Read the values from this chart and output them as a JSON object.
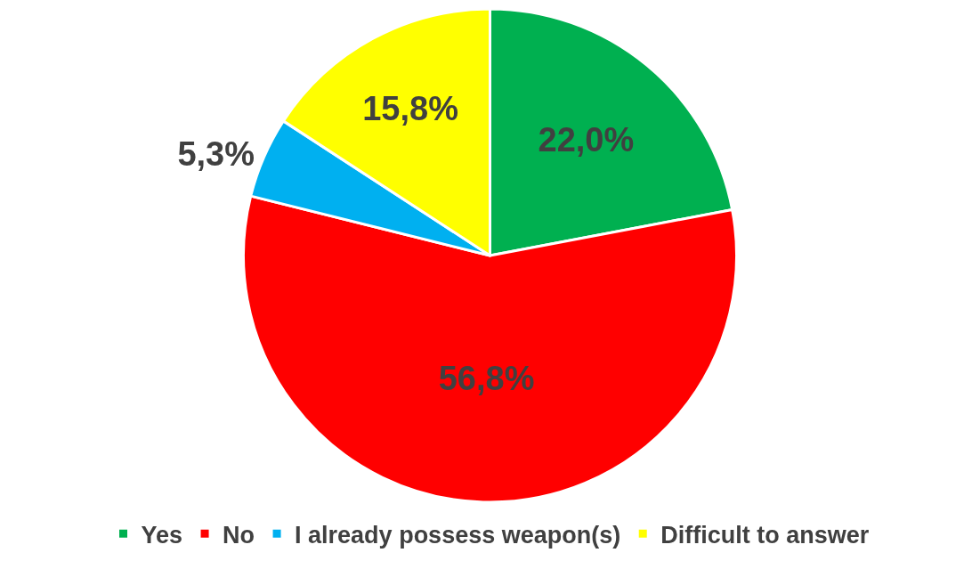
{
  "chart_data": {
    "type": "pie",
    "categories": [
      "Yes",
      "No",
      "I already possess weapon(s)",
      "Difficult to answer"
    ],
    "values": [
      22.0,
      56.8,
      5.3,
      15.8
    ],
    "value_labels": [
      "22,0%",
      "56,8%",
      "5,3%",
      "15,8%"
    ],
    "colors": [
      "#00b050",
      "#ff0000",
      "#00b0f0",
      "#ffff00"
    ],
    "legend": "bottom"
  }
}
